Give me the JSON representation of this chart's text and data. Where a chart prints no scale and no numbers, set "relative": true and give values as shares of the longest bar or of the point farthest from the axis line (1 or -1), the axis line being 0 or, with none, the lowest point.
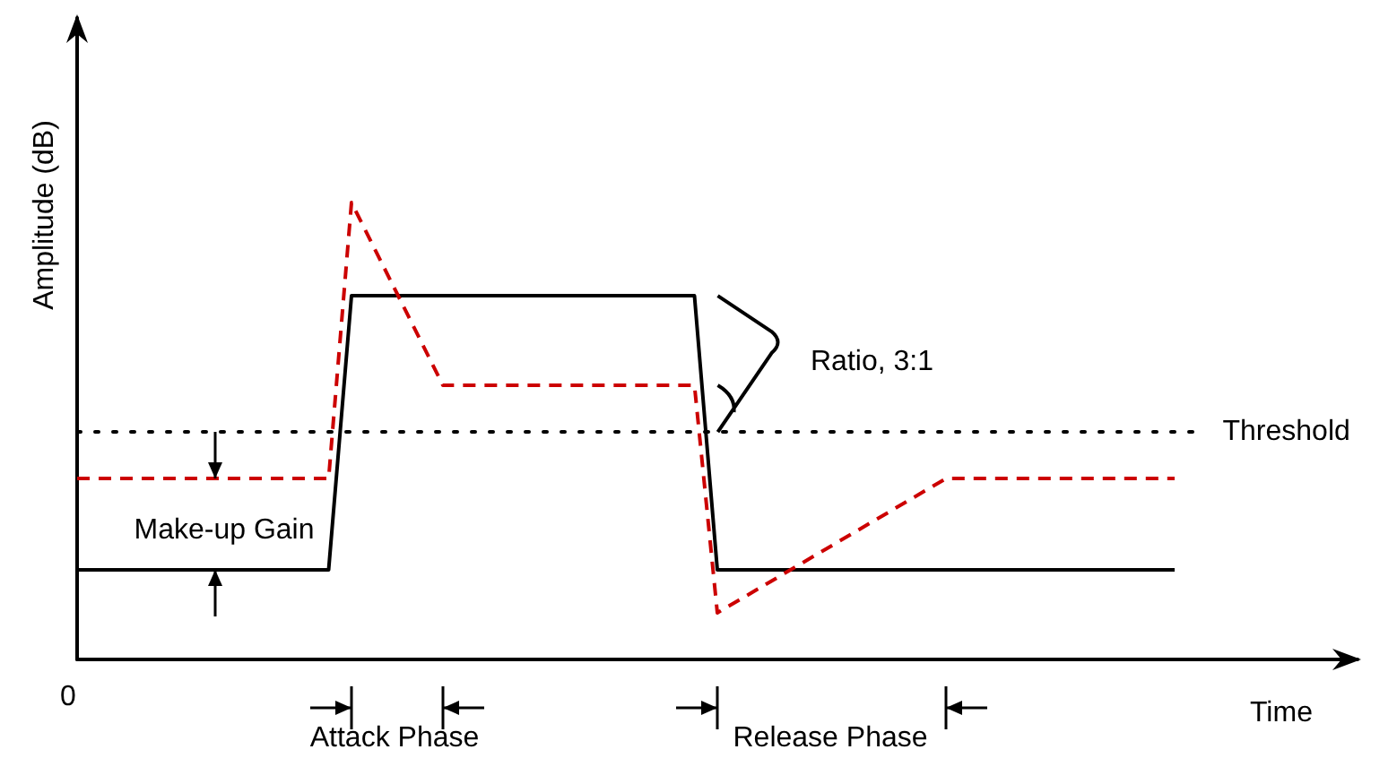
{
  "chart_data": {
    "type": "line",
    "relative": true,
    "xlabel": "Time",
    "ylabel": "Amplitude (dB)",
    "categories": [
      null,
      null,
      null,
      null,
      null,
      null,
      null,
      null,
      null,
      null,
      null,
      null,
      null,
      null,
      null,
      null,
      null,
      null,
      null,
      null,
      null,
      null,
      null,
      null,
      null,
      null,
      null,
      null,
      null,
      null,
      null,
      null,
      null,
      null,
      null,
      null,
      null,
      null,
      null,
      null,
      null,
      null,
      null,
      null,
      null,
      null,
      null,
      null,
      null,
      null,
      null,
      null,
      null,
      null,
      null,
      null,
      null
    ],
    "grid": false,
    "marker": "none",
    "series": [
      {
        "color": "#000000",
        "line_style": "solid",
        "values": [
          0.196,
          null,
          null,
          null,
          null,
          null,
          null,
          null,
          null,
          null,
          null,
          0.196,
          0.796,
          null,
          null,
          null,
          null,
          null,
          null,
          null,
          null,
          null,
          null,
          null,
          null,
          null,
          null,
          0.796,
          0.196,
          null,
          null,
          null,
          null,
          null,
          null,
          null,
          null,
          null,
          null,
          null,
          null,
          null,
          null,
          null,
          null,
          null,
          null,
          null,
          0.196,
          null,
          null,
          null,
          null,
          null,
          null,
          null,
          null
        ]
      },
      {
        "color": "#cc0000",
        "line_style": "dashed",
        "values": [
          0.396,
          null,
          null,
          null,
          null,
          null,
          null,
          null,
          null,
          null,
          null,
          0.396,
          1,
          null,
          null,
          null,
          0.6,
          null,
          null,
          null,
          null,
          null,
          null,
          null,
          null,
          null,
          null,
          0.6,
          0.102,
          null,
          null,
          null,
          null,
          null,
          null,
          null,
          null,
          null,
          0.396,
          null,
          null,
          null,
          null,
          null,
          null,
          null,
          null,
          null,
          0.396,
          null,
          null,
          null,
          null,
          null,
          null,
          null,
          null
        ]
      }
    ],
    "ref_lines": [
      {
        "axis": "y",
        "value": 0.498,
        "label": "Threshold",
        "color": "#000000",
        "line_style": "dotted"
      }
    ],
    "annotations": [
      "Make-up Gain",
      "Attack Phase",
      "Release Phase",
      "Ratio, 3:1",
      "0"
    ]
  }
}
